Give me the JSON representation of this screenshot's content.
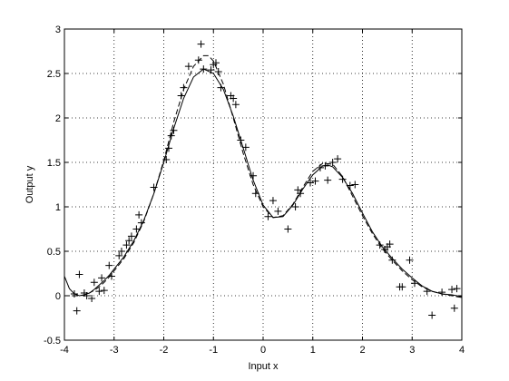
{
  "chart_data": {
    "type": "scatter",
    "xlabel": "Input x",
    "ylabel": "Output y",
    "xlim": [
      -4,
      4
    ],
    "ylim": [
      -0.5,
      3
    ],
    "xticks": [
      -4,
      -3,
      -2,
      -1,
      0,
      1,
      2,
      3,
      4
    ],
    "yticks": [
      -0.5,
      0,
      0.5,
      1,
      1.5,
      2,
      2.5,
      3
    ],
    "xtick_labels": [
      "-4",
      "-3",
      "-2",
      "-1",
      "0",
      "1",
      "2",
      "3",
      "4"
    ],
    "ytick_labels": [
      "-0.5",
      "0",
      "0.5",
      "1",
      "1.5",
      "2",
      "2.5",
      "3"
    ],
    "grid": true,
    "series": [
      {
        "kind": "markers",
        "marker": "plus",
        "x": [
          -3.8,
          -3.75,
          -3.7,
          -3.6,
          -3.55,
          -3.45,
          -3.4,
          -3.3,
          -3.25,
          -3.2,
          -3.1,
          -3.05,
          -2.9,
          -2.85,
          -2.75,
          -2.7,
          -2.65,
          -2.55,
          -2.5,
          -2.45,
          -2.2,
          -1.95,
          -1.9,
          -1.85,
          -1.8,
          -1.65,
          -1.6,
          -1.5,
          -1.3,
          -1.25,
          -1.2,
          -1.05,
          -1.0,
          -0.95,
          -0.9,
          -0.85,
          -0.65,
          -0.6,
          -0.55,
          -0.45,
          -0.35,
          -0.2,
          -0.15,
          0.1,
          0.2,
          0.3,
          0.5,
          0.65,
          0.7,
          0.75,
          0.95,
          1.05,
          1.15,
          1.25,
          1.3,
          1.4,
          1.5,
          1.6,
          1.75,
          1.85,
          2.35,
          2.45,
          2.5,
          2.55,
          2.6,
          2.75,
          2.8,
          2.95,
          3.05,
          3.3,
          3.4,
          3.6,
          3.8,
          3.85,
          3.9
        ],
        "y": [
          0.02,
          -0.17,
          0.24,
          0.03,
          0.0,
          -0.03,
          0.15,
          0.05,
          0.2,
          0.06,
          0.34,
          0.22,
          0.45,
          0.5,
          0.57,
          0.62,
          0.67,
          0.75,
          0.91,
          0.82,
          1.22,
          1.53,
          1.66,
          1.8,
          1.86,
          2.25,
          2.34,
          2.58,
          2.65,
          2.83,
          2.55,
          2.54,
          2.6,
          2.62,
          2.52,
          2.34,
          2.25,
          2.22,
          2.15,
          1.75,
          1.67,
          1.35,
          1.15,
          0.89,
          1.07,
          0.95,
          0.75,
          1.0,
          1.19,
          1.15,
          1.27,
          1.29,
          1.44,
          1.46,
          1.3,
          1.5,
          1.54,
          1.31,
          1.24,
          1.25,
          0.57,
          0.52,
          0.55,
          0.58,
          0.4,
          0.1,
          0.1,
          0.4,
          0.14,
          0.05,
          -0.22,
          0.04,
          0.07,
          -0.14,
          0.08
        ]
      },
      {
        "kind": "line",
        "style": "solid",
        "x": [
          -4.0,
          -3.9,
          -3.8,
          -3.7,
          -3.6,
          -3.5,
          -3.4,
          -3.3,
          -3.2,
          -3.1,
          -3.0,
          -2.8,
          -2.6,
          -2.4,
          -2.2,
          -2.0,
          -1.8,
          -1.6,
          -1.4,
          -1.2,
          -1.0,
          -0.8,
          -0.6,
          -0.4,
          -0.2,
          0.0,
          0.2,
          0.4,
          0.6,
          0.8,
          1.0,
          1.2,
          1.3,
          1.4,
          1.6,
          1.8,
          2.0,
          2.2,
          2.4,
          2.6,
          2.8,
          3.0,
          3.2,
          3.4,
          3.6,
          3.8,
          4.0
        ],
        "y": [
          0.22,
          0.08,
          0.02,
          0.0,
          0.01,
          0.03,
          0.07,
          0.12,
          0.17,
          0.23,
          0.3,
          0.44,
          0.62,
          0.85,
          1.15,
          1.5,
          1.88,
          2.22,
          2.46,
          2.55,
          2.5,
          2.32,
          2.02,
          1.66,
          1.3,
          1.02,
          0.88,
          0.89,
          1.02,
          1.2,
          1.36,
          1.46,
          1.47,
          1.45,
          1.33,
          1.15,
          0.93,
          0.72,
          0.55,
          0.42,
          0.3,
          0.2,
          0.11,
          0.05,
          0.02,
          0.01,
          -0.01
        ]
      },
      {
        "kind": "line",
        "style": "dashed",
        "x": [
          -4.0,
          -3.9,
          -3.8,
          -3.7,
          -3.6,
          -3.5,
          -3.4,
          -3.3,
          -3.2,
          -3.1,
          -3.0,
          -2.8,
          -2.6,
          -2.4,
          -2.2,
          -2.0,
          -1.8,
          -1.6,
          -1.4,
          -1.2,
          -1.1,
          -1.0,
          -0.8,
          -0.6,
          -0.4,
          -0.2,
          0.0,
          0.2,
          0.4,
          0.6,
          0.8,
          1.0,
          1.2,
          1.4,
          1.6,
          1.8,
          2.0,
          2.2,
          2.4,
          2.6,
          2.8,
          3.0,
          3.2,
          3.4,
          3.6,
          3.8,
          4.0
        ],
        "y": [
          0.0,
          0.0,
          0.0,
          0.0,
          0.01,
          0.03,
          0.06,
          0.1,
          0.15,
          0.21,
          0.28,
          0.42,
          0.6,
          0.84,
          1.15,
          1.52,
          1.95,
          2.32,
          2.58,
          2.7,
          2.7,
          2.64,
          2.38,
          2.0,
          1.6,
          1.25,
          1.0,
          0.88,
          0.9,
          1.03,
          1.22,
          1.4,
          1.49,
          1.48,
          1.34,
          1.12,
          0.9,
          0.7,
          0.53,
          0.4,
          0.28,
          0.18,
          0.1,
          0.05,
          0.02,
          0.0,
          -0.02
        ]
      }
    ]
  }
}
